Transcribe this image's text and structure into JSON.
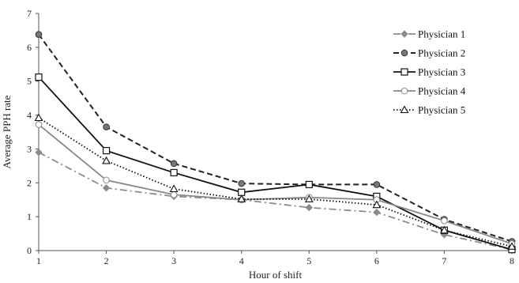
{
  "chart_data": {
    "type": "line",
    "title": "",
    "xlabel": "Hour of shift",
    "ylabel": "Average PPH rate",
    "x": [
      1,
      2,
      3,
      4,
      5,
      6,
      7,
      8
    ],
    "xlim": [
      1,
      8
    ],
    "ylim": [
      0,
      7
    ],
    "yticks": [
      0,
      1,
      2,
      3,
      4,
      5,
      6,
      7
    ],
    "grid": false,
    "legend_position": "right",
    "series": [
      {
        "name": "Physician 1",
        "values": [
          2.9,
          1.85,
          1.6,
          1.5,
          1.27,
          1.13,
          0.47,
          0.03
        ],
        "color": "#8c8c8c",
        "dash": "dash-dot",
        "marker": "diamond"
      },
      {
        "name": "Physician 2",
        "values": [
          6.38,
          3.65,
          2.57,
          1.98,
          1.95,
          1.95,
          0.92,
          0.27
        ],
        "color": "#222222",
        "dash": "dashed",
        "marker": "circle"
      },
      {
        "name": "Physician 3",
        "values": [
          5.12,
          2.95,
          2.3,
          1.72,
          1.95,
          1.6,
          0.6,
          0.03
        ],
        "color": "#111111",
        "dash": "solid",
        "marker": "square"
      },
      {
        "name": "Physician 4",
        "values": [
          3.72,
          2.08,
          1.65,
          1.5,
          1.57,
          1.5,
          0.88,
          0.2
        ],
        "color": "#888888",
        "dash": "solid",
        "marker": "circle-open"
      },
      {
        "name": "Physician 5",
        "values": [
          3.92,
          2.65,
          1.82,
          1.52,
          1.52,
          1.35,
          0.6,
          0.12
        ],
        "color": "#111111",
        "dash": "dotted",
        "marker": "triangle"
      }
    ]
  }
}
